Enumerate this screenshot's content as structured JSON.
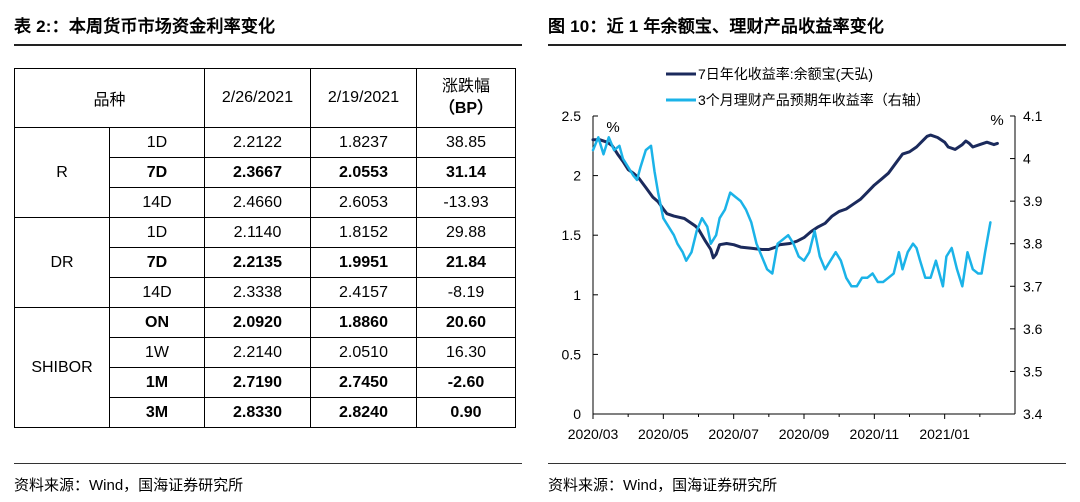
{
  "left": {
    "title": "表 2:：本周货币市场资金利率变化",
    "table": {
      "headers": {
        "category": "品种",
        "date1": "2/26/2021",
        "date2": "2/19/2021",
        "change_line1": "涨跌幅",
        "change_line2": "（BP）"
      },
      "groups": [
        {
          "name": "R",
          "rows": [
            {
              "tenor": "1D",
              "v1": "2.2122",
              "v2": "1.8237",
              "chg": "38.85",
              "bold": false
            },
            {
              "tenor": "7D",
              "v1": "2.3667",
              "v2": "2.0553",
              "chg": "31.14",
              "bold": true
            },
            {
              "tenor": "14D",
              "v1": "2.4660",
              "v2": "2.6053",
              "chg": "-13.93",
              "bold": false
            }
          ]
        },
        {
          "name": "DR",
          "rows": [
            {
              "tenor": "1D",
              "v1": "2.1140",
              "v2": "1.8152",
              "chg": "29.88",
              "bold": false
            },
            {
              "tenor": "7D",
              "v1": "2.2135",
              "v2": "1.9951",
              "chg": "21.84",
              "bold": true
            },
            {
              "tenor": "14D",
              "v1": "2.3338",
              "v2": "2.4157",
              "chg": "-8.19",
              "bold": false
            }
          ]
        },
        {
          "name": "SHIBOR",
          "rows": [
            {
              "tenor": "ON",
              "v1": "2.0920",
              "v2": "1.8860",
              "chg": "20.60",
              "bold": true
            },
            {
              "tenor": "1W",
              "v1": "2.2140",
              "v2": "2.0510",
              "chg": "16.30",
              "bold": false
            },
            {
              "tenor": "1M",
              "v1": "2.7190",
              "v2": "2.7450",
              "chg": "-2.60",
              "bold": true
            },
            {
              "tenor": "3M",
              "v1": "2.8330",
              "v2": "2.8240",
              "chg": "0.90",
              "bold": true
            }
          ]
        }
      ]
    },
    "source": "资料来源：Wind，国海证券研究所"
  },
  "right": {
    "title": "图 10：近 1 年余额宝、理财产品收益率变化",
    "source": "资料来源：Wind，国海证券研究所",
    "colors": {
      "series1": "#1b2a5c",
      "series2": "#1bb3e8",
      "axis": "#000000"
    }
  },
  "chart_data": {
    "type": "line",
    "title": "近 1 年余额宝、理财产品收益率变化",
    "left_axis": {
      "unit_label": "%",
      "ylim": [
        0,
        2.5
      ],
      "ticks": [
        "0",
        "0.5",
        "1",
        "1.5",
        "2",
        "2.5"
      ]
    },
    "right_axis": {
      "unit_label": "%",
      "ylim": [
        3.4,
        4.1
      ],
      "ticks": [
        "3.4",
        "3.5",
        "3.6",
        "3.7",
        "3.8",
        "3.9",
        "4",
        "4.1"
      ]
    },
    "x_ticks": [
      "2020/03",
      "2020/05",
      "2020/07",
      "2020/09",
      "2020/11",
      "2021/01"
    ],
    "x_domain": [
      0,
      12
    ],
    "series": [
      {
        "name": "7日年化收益率:余额宝(天弘)",
        "axis": "left",
        "points": [
          [
            0,
            2.3
          ],
          [
            0.2,
            2.3
          ],
          [
            0.4,
            2.28
          ],
          [
            0.55,
            2.25
          ],
          [
            0.7,
            2.18
          ],
          [
            0.85,
            2.12
          ],
          [
            1.0,
            2.05
          ],
          [
            1.15,
            2.02
          ],
          [
            1.3,
            1.98
          ],
          [
            1.5,
            1.9
          ],
          [
            1.7,
            1.82
          ],
          [
            1.85,
            1.78
          ],
          [
            2.0,
            1.72
          ],
          [
            2.1,
            1.68
          ],
          [
            2.3,
            1.66
          ],
          [
            2.6,
            1.64
          ],
          [
            2.9,
            1.58
          ],
          [
            3.0,
            1.55
          ],
          [
            3.2,
            1.45
          ],
          [
            3.35,
            1.38
          ],
          [
            3.42,
            1.31
          ],
          [
            3.5,
            1.34
          ],
          [
            3.6,
            1.42
          ],
          [
            3.8,
            1.43
          ],
          [
            4.0,
            1.42
          ],
          [
            4.2,
            1.4
          ],
          [
            4.5,
            1.39
          ],
          [
            4.8,
            1.38
          ],
          [
            5.0,
            1.38
          ],
          [
            5.2,
            1.4
          ],
          [
            5.3,
            1.42
          ],
          [
            5.6,
            1.43
          ],
          [
            5.8,
            1.45
          ],
          [
            6.0,
            1.48
          ],
          [
            6.2,
            1.53
          ],
          [
            6.4,
            1.57
          ],
          [
            6.6,
            1.6
          ],
          [
            6.8,
            1.66
          ],
          [
            7.0,
            1.7
          ],
          [
            7.2,
            1.72
          ],
          [
            7.4,
            1.76
          ],
          [
            7.6,
            1.8
          ],
          [
            7.8,
            1.86
          ],
          [
            8.0,
            1.92
          ],
          [
            8.2,
            1.97
          ],
          [
            8.4,
            2.02
          ],
          [
            8.6,
            2.1
          ],
          [
            8.8,
            2.18
          ],
          [
            9.0,
            2.2
          ],
          [
            9.2,
            2.24
          ],
          [
            9.4,
            2.3
          ],
          [
            9.5,
            2.33
          ],
          [
            9.6,
            2.34
          ],
          [
            9.8,
            2.32
          ],
          [
            10.0,
            2.28
          ],
          [
            10.1,
            2.24
          ],
          [
            10.3,
            2.22
          ],
          [
            10.5,
            2.26
          ],
          [
            10.6,
            2.29
          ],
          [
            10.7,
            2.27
          ],
          [
            10.8,
            2.24
          ],
          [
            11.0,
            2.26
          ],
          [
            11.2,
            2.28
          ],
          [
            11.4,
            2.26
          ],
          [
            11.5,
            2.27
          ]
        ]
      },
      {
        "name": "3个月理财产品预期年收益率（右轴）",
        "axis": "right",
        "points": [
          [
            0,
            4.02
          ],
          [
            0.15,
            4.05
          ],
          [
            0.3,
            4.01
          ],
          [
            0.45,
            4.05
          ],
          [
            0.6,
            4.02
          ],
          [
            0.75,
            4.03
          ],
          [
            0.85,
            4.0
          ],
          [
            1.0,
            3.98
          ],
          [
            1.15,
            3.96
          ],
          [
            1.25,
            3.95
          ],
          [
            1.35,
            3.98
          ],
          [
            1.5,
            4.02
          ],
          [
            1.65,
            4.03
          ],
          [
            1.75,
            3.97
          ],
          [
            1.85,
            3.92
          ],
          [
            2.0,
            3.86
          ],
          [
            2.15,
            3.84
          ],
          [
            2.3,
            3.82
          ],
          [
            2.4,
            3.8
          ],
          [
            2.55,
            3.78
          ],
          [
            2.65,
            3.76
          ],
          [
            2.8,
            3.78
          ],
          [
            2.95,
            3.83
          ],
          [
            3.1,
            3.86
          ],
          [
            3.25,
            3.84
          ],
          [
            3.35,
            3.8
          ],
          [
            3.5,
            3.82
          ],
          [
            3.6,
            3.86
          ],
          [
            3.75,
            3.88
          ],
          [
            3.9,
            3.92
          ],
          [
            4.05,
            3.91
          ],
          [
            4.2,
            3.9
          ],
          [
            4.35,
            3.88
          ],
          [
            4.5,
            3.85
          ],
          [
            4.65,
            3.8
          ],
          [
            4.8,
            3.77
          ],
          [
            4.95,
            3.74
          ],
          [
            5.1,
            3.73
          ],
          [
            5.25,
            3.8
          ],
          [
            5.4,
            3.81
          ],
          [
            5.55,
            3.82
          ],
          [
            5.7,
            3.8
          ],
          [
            5.85,
            3.77
          ],
          [
            6.0,
            3.76
          ],
          [
            6.15,
            3.78
          ],
          [
            6.3,
            3.83
          ],
          [
            6.45,
            3.77
          ],
          [
            6.6,
            3.74
          ],
          [
            6.75,
            3.76
          ],
          [
            6.9,
            3.78
          ],
          [
            7.05,
            3.76
          ],
          [
            7.2,
            3.72
          ],
          [
            7.35,
            3.7
          ],
          [
            7.5,
            3.7
          ],
          [
            7.65,
            3.72
          ],
          [
            7.8,
            3.72
          ],
          [
            7.95,
            3.73
          ],
          [
            8.1,
            3.71
          ],
          [
            8.25,
            3.71
          ],
          [
            8.4,
            3.72
          ],
          [
            8.55,
            3.73
          ],
          [
            8.7,
            3.78
          ],
          [
            8.8,
            3.74
          ],
          [
            8.95,
            3.78
          ],
          [
            9.1,
            3.8
          ],
          [
            9.2,
            3.79
          ],
          [
            9.3,
            3.76
          ],
          [
            9.45,
            3.72
          ],
          [
            9.6,
            3.72
          ],
          [
            9.75,
            3.76
          ],
          [
            9.85,
            3.73
          ],
          [
            9.95,
            3.7
          ],
          [
            10.05,
            3.77
          ],
          [
            10.2,
            3.79
          ],
          [
            10.35,
            3.74
          ],
          [
            10.5,
            3.7
          ],
          [
            10.65,
            3.78
          ],
          [
            10.8,
            3.74
          ],
          [
            10.95,
            3.73
          ],
          [
            11.05,
            3.73
          ],
          [
            11.15,
            3.78
          ],
          [
            11.3,
            3.85
          ]
        ]
      }
    ]
  }
}
